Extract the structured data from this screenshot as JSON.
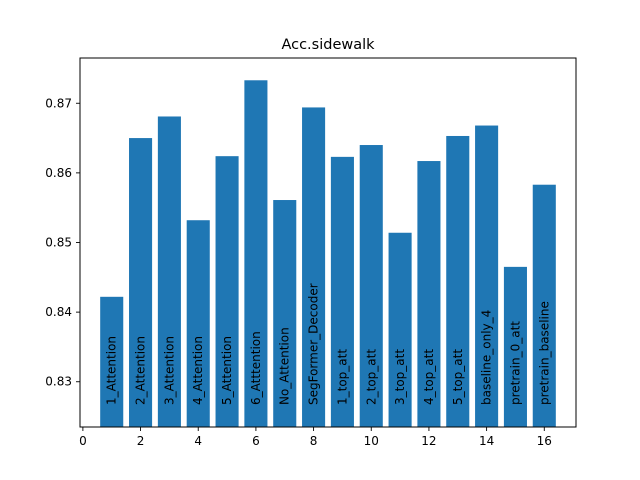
{
  "chart_data": {
    "type": "bar",
    "title": "Acc.sidewalk",
    "xlabel": "",
    "ylabel": "",
    "x": [
      1,
      2,
      3,
      4,
      5,
      6,
      7,
      8,
      9,
      10,
      11,
      12,
      13,
      14,
      15,
      16
    ],
    "categories": [
      "1_Attention",
      "2_Attention",
      "3_Attention",
      "4_Attention",
      "5_Attention",
      "6_Atttention",
      "No_Attention",
      "SegFormer_Decoder",
      "1_top_att",
      "2_top_att",
      "3_top_att",
      "4_top_att",
      "5_top_att",
      "baseline_only_4",
      "pretrain_0_att",
      "pretrain_baseline"
    ],
    "values": [
      0.8422,
      0.865,
      0.8681,
      0.8532,
      0.8624,
      0.8733,
      0.8561,
      0.8694,
      0.8623,
      0.864,
      0.8514,
      0.8617,
      0.8653,
      0.8668,
      0.8465,
      0.8583
    ],
    "xlim": [
      -0.1,
      17.1
    ],
    "ylim": [
      0.8235,
      0.8765
    ],
    "xticks": [
      0,
      2,
      4,
      6,
      8,
      10,
      12,
      14,
      16
    ],
    "yticks": [
      0.83,
      0.84,
      0.85,
      0.86,
      0.87
    ],
    "ytick_labels": [
      "0.83",
      "0.84",
      "0.85",
      "0.86",
      "0.87"
    ],
    "grid": false,
    "legend": "none",
    "bar_color": "#1f77b4",
    "label_placement": "rotated vertical inside bars"
  }
}
